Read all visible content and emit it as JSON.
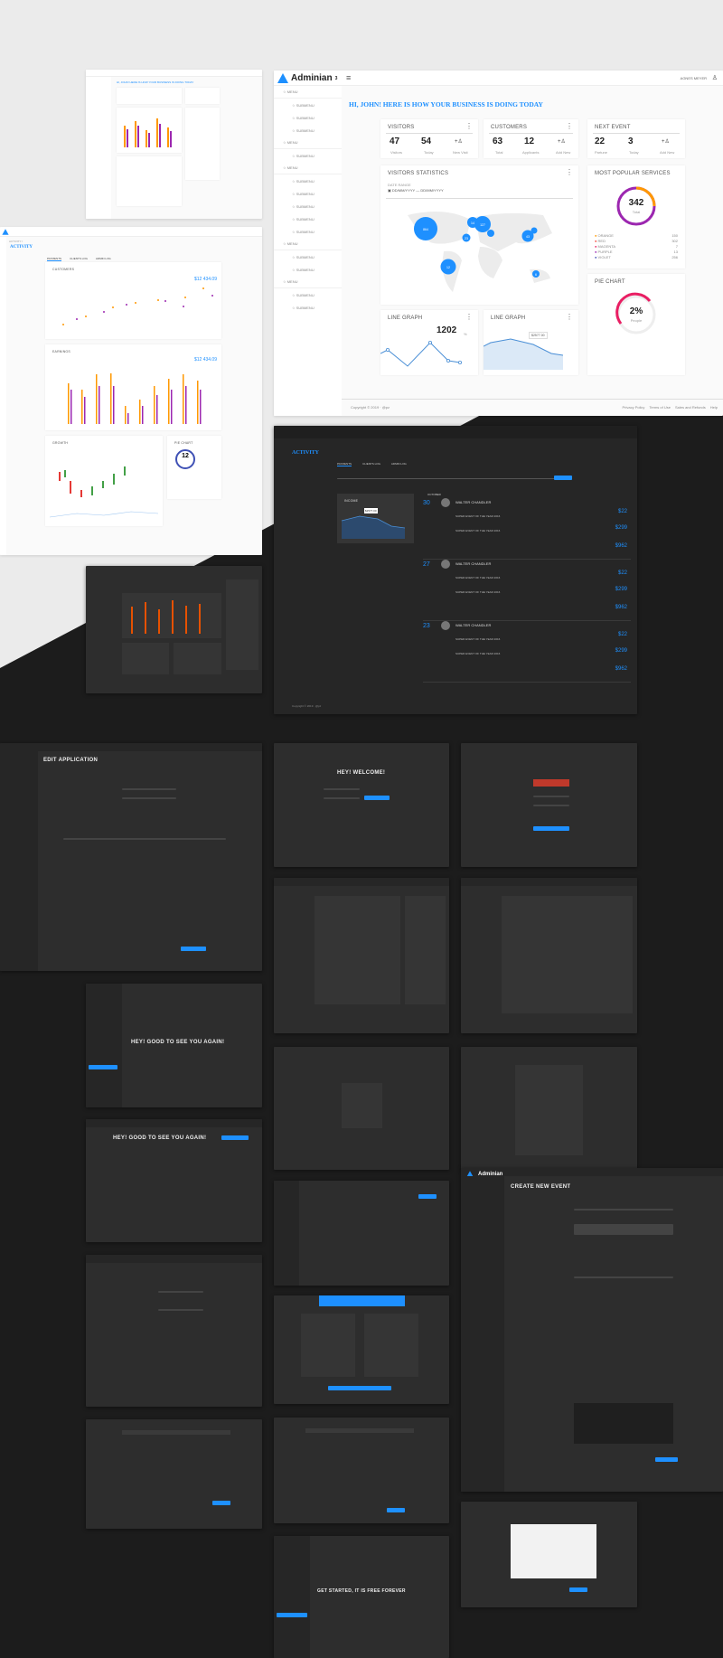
{
  "brand": {
    "name": "Adminian",
    "sup": "3",
    "accent": "#1e90ff"
  },
  "main_dashboard": {
    "greeting": "HI, JOHN! HERE IS HOW YOUR BUSINESS IS DOING TODAY",
    "user_menu": "AGNES MEYER",
    "sidebar": {
      "menu_label": "MENU",
      "submenu_label": "SUBMENU"
    },
    "visitors": {
      "title": "VISITORS",
      "stats": [
        {
          "value": "47",
          "label": "Visitors"
        },
        {
          "value": "54",
          "label": "Today"
        }
      ],
      "action": "New Visit"
    },
    "customers": {
      "title": "CUSTOMERS",
      "stats": [
        {
          "value": "63",
          "label": "Total"
        },
        {
          "value": "12",
          "label": "Applicants"
        }
      ],
      "action": "Add New"
    },
    "next_event": {
      "title": "NEXT EVENT",
      "stats": [
        {
          "value": "22",
          "label": "Partune"
        },
        {
          "value": "3",
          "label": "Today"
        }
      ],
      "action": "Add New"
    },
    "visitors_statistics": {
      "title": "VISITORS STATISTICS",
      "date_label": "DATE RANGE",
      "date_range": "DD/MM/YYYY — DD/MM/YYYY",
      "bubbles": [
        "864",
        "127",
        "12",
        "43",
        "23",
        "14",
        "6"
      ]
    },
    "most_popular": {
      "title": "MOST POPULAR SERVICES",
      "total": "342",
      "total_label": "Total",
      "legend": [
        {
          "name": "ORANGE",
          "value": "150",
          "color": "#ff9800"
        },
        {
          "name": "RED",
          "value": "302",
          "color": "#f44336"
        },
        {
          "name": "MAGENTA",
          "value": "7",
          "color": "#e91e63"
        },
        {
          "name": "PURPLE",
          "value": "13",
          "color": "#9c27b0"
        },
        {
          "name": "VIOLET",
          "value": "256",
          "color": "#3f51b5"
        }
      ]
    },
    "line_graph_1": {
      "title": "LINE GRAPH",
      "value": "1202",
      "unit": "%"
    },
    "line_graph_2": {
      "title": "LINE GRAPH",
      "tooltip": "$2577.00"
    },
    "pie_chart": {
      "title": "PIE CHART",
      "value": "2%",
      "label": "People"
    },
    "footer": {
      "copyright": "Copyright © 2019 · @pz",
      "links": [
        "Privacy Policy",
        "Terms of Use",
        "Sales and Refunds",
        "Help"
      ]
    }
  },
  "activity_light": {
    "title": "ACTIVITY",
    "breadcrumb": "ACTIVITY /",
    "tabs": [
      "PAYMENTS",
      "CLIENTS LOG",
      "ADMIN LOG"
    ],
    "charts": [
      {
        "title": "CUSTOMERS",
        "value": "$12 434.09"
      },
      {
        "title": "EARNINGS",
        "value": "$12 434.09"
      },
      {
        "title": "GROWTH"
      },
      {
        "title": "PIE CHART",
        "value": "12"
      }
    ]
  },
  "activity_dark": {
    "title": "ACTIVITY",
    "tabs": [
      "PAYMENTS",
      "CLIENTS LOG",
      "ADMIN LOG"
    ],
    "income_title": "INCOME",
    "income_tooltip": "$2577.00",
    "month": "OCTOBER",
    "events": [
      {
        "day": "30",
        "name": "WALTER CHANDLER",
        "event": "SUPER EVENT OF THE YEAR 2016",
        "price": "$22",
        "total": "$299",
        "gold": "$962"
      },
      {
        "day": "27",
        "name": "WALTER CHANDLER",
        "event": "SUPER EVENT OF THE YEAR 2016",
        "price": "$22",
        "total": "$299",
        "gold": "$962"
      },
      {
        "day": "23",
        "name": "WALTER CHANDLER",
        "event": "SUPER EVENT OF THE YEAR 2016",
        "price": "$22",
        "total": "$299",
        "gold": "$962"
      }
    ],
    "footer": "Copyright © 2019 · @pz"
  },
  "screens": {
    "edit_application": "EDIT APPLICATION",
    "welcome": "HEY! WELCOME!",
    "good_to_see": "HEY! GOOD TO SEE YOU AGAIN!",
    "get_started": "GET STARTED, IT IS FREE FOREVER",
    "create_event": "CREATE NEW EVENT"
  }
}
